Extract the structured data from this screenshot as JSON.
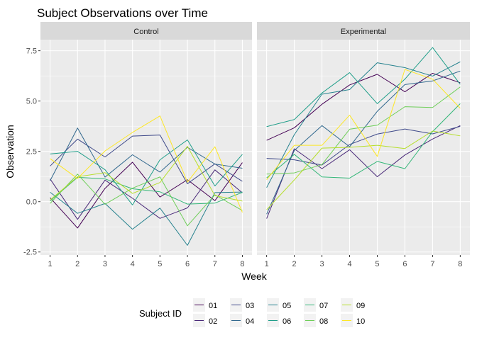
{
  "chart_data": {
    "type": "line",
    "title": "Subject Observations over Time",
    "xlabel": "Week",
    "ylabel": "Observation",
    "x": [
      1,
      2,
      3,
      4,
      5,
      6,
      7,
      8
    ],
    "xlim": [
      0.65,
      8.35
    ],
    "ylim": [
      -2.65,
      8.05
    ],
    "yticks": [
      -2.5,
      0.0,
      2.5,
      5.0,
      7.5
    ],
    "ytick_labels": [
      "-2.5",
      "0.0",
      "2.5",
      "5.0",
      "7.5"
    ],
    "grid": true,
    "legend": {
      "title": "Subject ID",
      "position": "bottom",
      "entries": [
        "01",
        "02",
        "03",
        "04",
        "05",
        "06",
        "07",
        "08",
        "09",
        "10"
      ]
    },
    "colors": {
      "01": "#440154",
      "02": "#482878",
      "03": "#3e4989",
      "04": "#31688e",
      "05": "#26828e",
      "06": "#1f9e89",
      "07": "#35b779",
      "08": "#6ece58",
      "09": "#b5de2b",
      "10": "#fde725"
    },
    "panels": [
      {
        "name": "Control",
        "series": [
          {
            "name": "01",
            "values": [
              0.2,
              -1.31,
              0.66,
              1.96,
              0.23,
              1.09,
              0.05,
              1.94
            ]
          },
          {
            "name": "02",
            "values": [
              1.13,
              -0.88,
              1.07,
              0.17,
              -0.83,
              -0.31,
              1.58,
              0.44
            ]
          },
          {
            "name": "03",
            "values": [
              1.77,
              3.11,
              2.22,
              3.26,
              3.31,
              0.89,
              1.88,
              1.01
            ]
          },
          {
            "name": "04",
            "values": [
              1.04,
              3.66,
              1.22,
              2.33,
              1.47,
              2.7,
              1.87,
              1.66
            ]
          },
          {
            "name": "05",
            "values": [
              0.47,
              -0.58,
              -0.09,
              -1.37,
              -0.32,
              -2.17,
              0.45,
              0.48
            ]
          },
          {
            "name": "06",
            "values": [
              2.37,
              2.5,
              1.59,
              -0.16,
              2.08,
              3.07,
              0.78,
              2.35
            ]
          },
          {
            "name": "07",
            "values": [
              0.03,
              1.21,
              1.13,
              0.64,
              0.49,
              -0.12,
              -0.07,
              0.46
            ]
          },
          {
            "name": "08",
            "values": [
              -0.09,
              1.37,
              -0.13,
              0.67,
              1.23,
              -1.2,
              0.34,
              -0.44
            ]
          },
          {
            "name": "09",
            "values": [
              0.08,
              1.24,
              1.44,
              0.41,
              0.95,
              2.75,
              0.3,
              0.03
            ]
          },
          {
            "name": "10",
            "values": [
              2.14,
              1.15,
              2.52,
              3.44,
              4.26,
              0.97,
              2.73,
              -0.53
            ]
          }
        ]
      },
      {
        "name": "Experimental",
        "series": [
          {
            "name": "01",
            "values": [
              3.05,
              3.67,
              4.84,
              5.8,
              6.33,
              5.46,
              6.38,
              5.91
            ]
          },
          {
            "name": "02",
            "values": [
              -0.84,
              2.63,
              1.64,
              2.58,
              1.24,
              2.32,
              3.11,
              3.78
            ]
          },
          {
            "name": "03",
            "values": [
              2.15,
              2.08,
              1.82,
              2.84,
              3.36,
              3.61,
              3.37,
              3.74
            ]
          },
          {
            "name": "04",
            "values": [
              -0.62,
              2.54,
              3.78,
              2.73,
              4.49,
              5.82,
              6.0,
              6.49
            ]
          },
          {
            "name": "05",
            "values": [
              0.7,
              3.33,
              5.34,
              5.57,
              6.9,
              6.66,
              6.24,
              6.95
            ]
          },
          {
            "name": "06",
            "values": [
              3.73,
              4.08,
              5.4,
              6.41,
              4.87,
              6.09,
              7.66,
              5.83
            ]
          },
          {
            "name": "07",
            "values": [
              1.18,
              2.35,
              1.23,
              1.17,
              2.0,
              1.64,
              3.48,
              4.87
            ]
          },
          {
            "name": "08",
            "values": [
              1.37,
              1.43,
              1.84,
              3.6,
              3.8,
              4.72,
              4.68,
              5.7
            ]
          },
          {
            "name": "09",
            "values": [
              -0.4,
              1.08,
              2.66,
              2.7,
              2.8,
              2.64,
              3.51,
              3.27
            ]
          },
          {
            "name": "10",
            "values": [
              1.09,
              2.8,
              2.8,
              4.3,
              2.25,
              6.57,
              6.09,
              4.64
            ]
          }
        ]
      }
    ]
  }
}
